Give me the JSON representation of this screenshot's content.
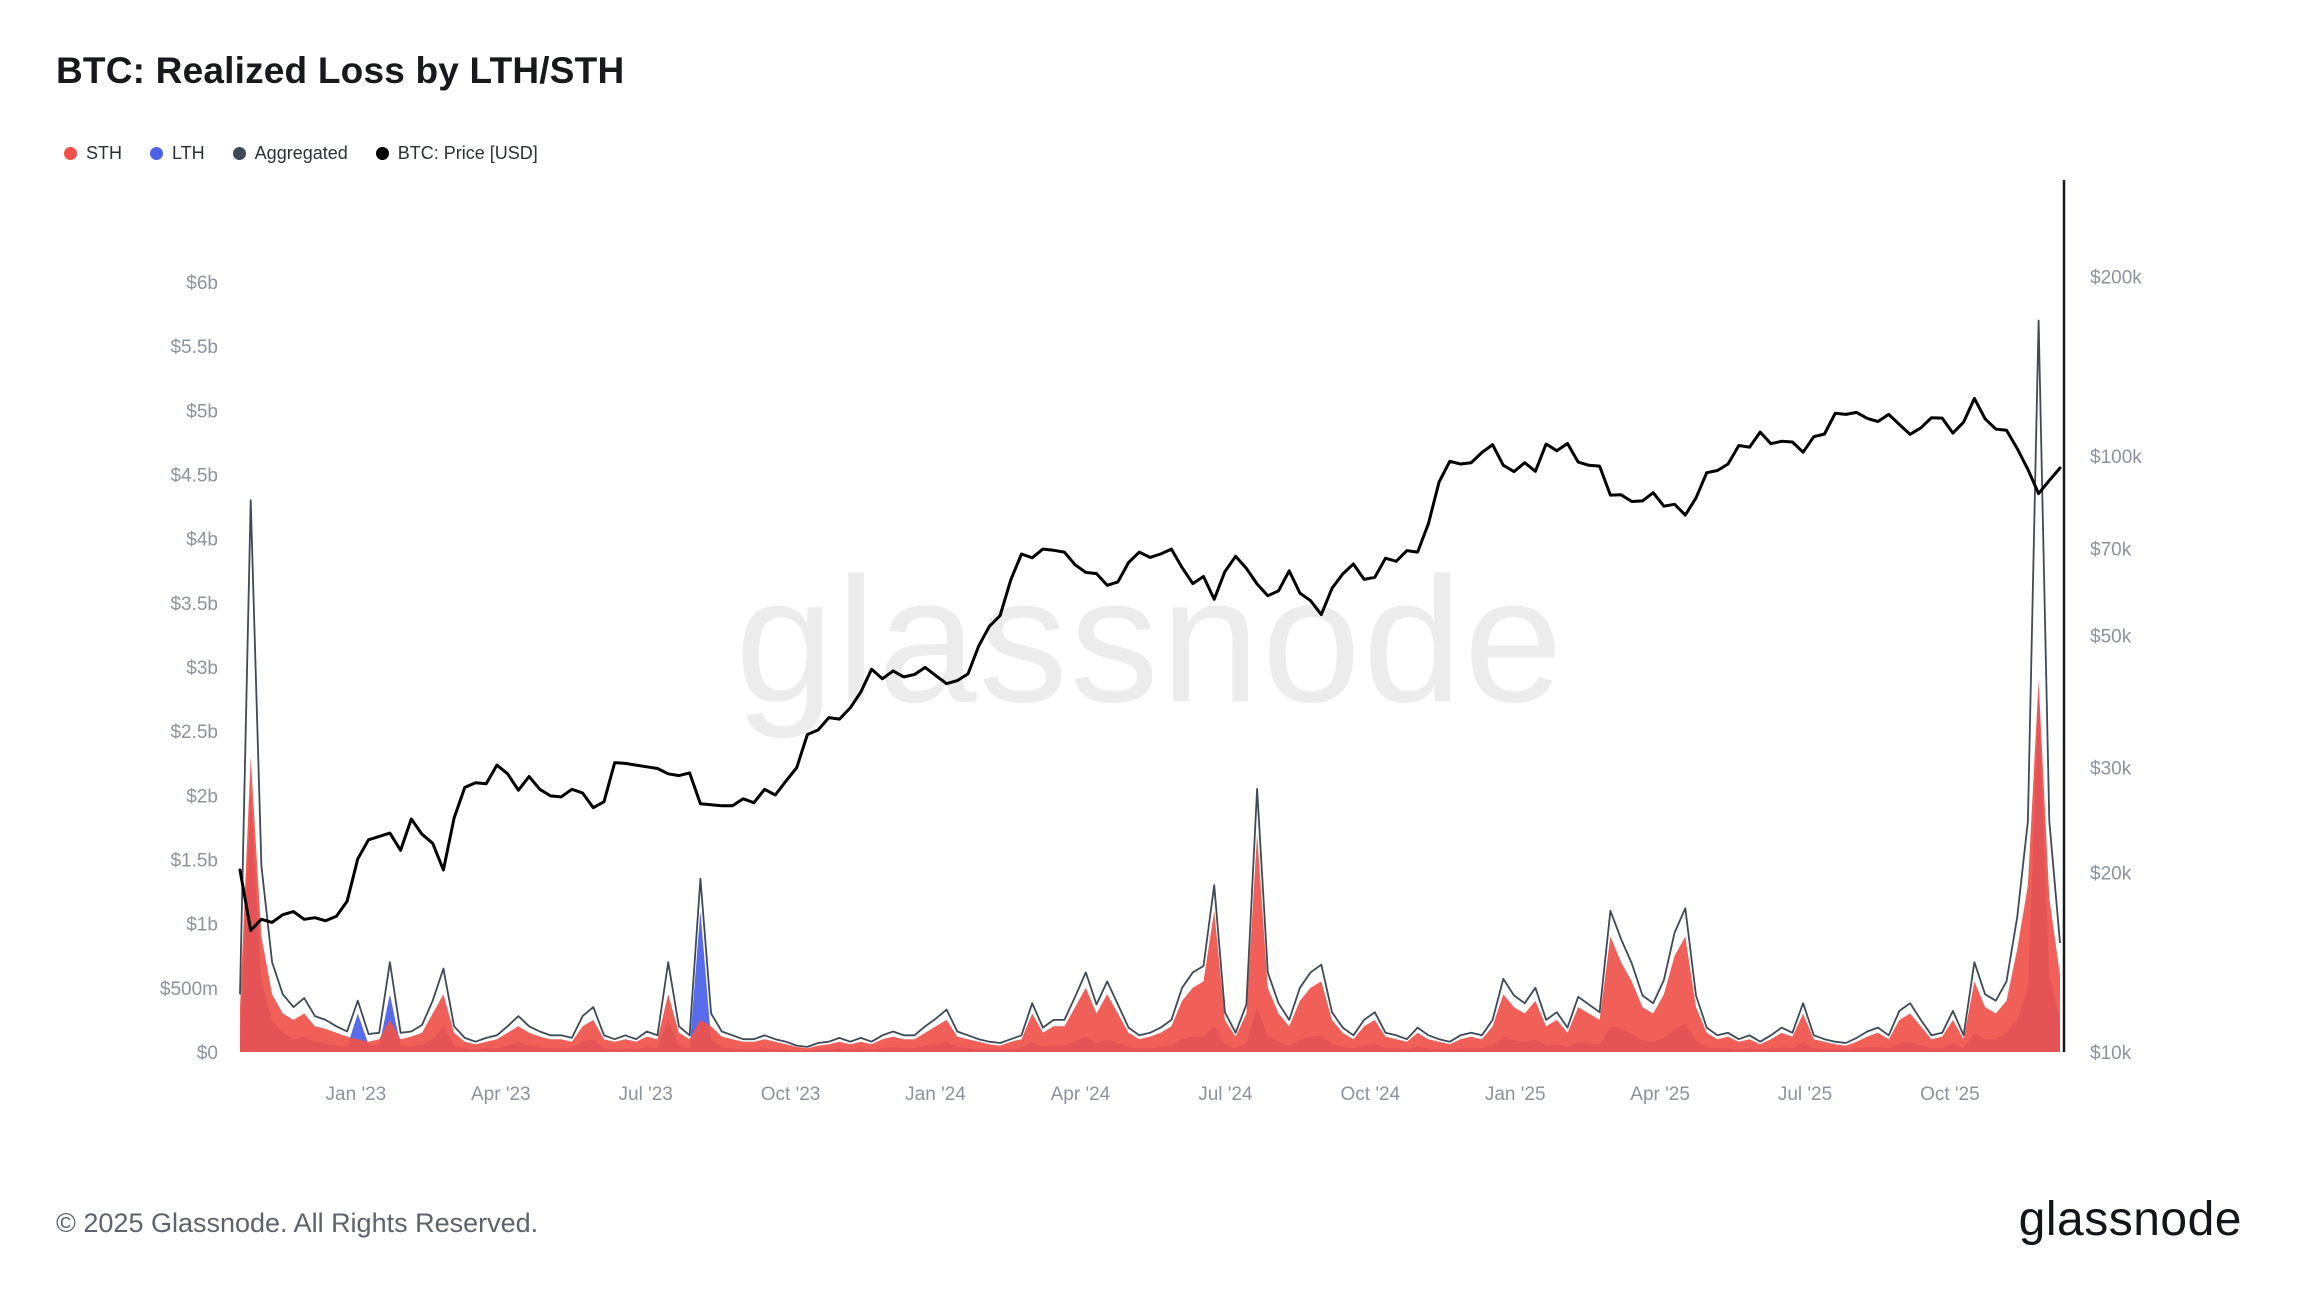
{
  "title": "BTC: Realized Loss by LTH/STH",
  "watermark": "glassnode",
  "legend": {
    "items": [
      {
        "label": "STH",
        "color": "#f0524a"
      },
      {
        "label": "LTH",
        "color": "#4f63ea"
      },
      {
        "label": "Aggregated",
        "color": "#3e4a57"
      },
      {
        "label": "BTC: Price [USD]",
        "color": "#000000"
      }
    ]
  },
  "footer": {
    "copyright": "© 2025 Glassnode. All Rights Reserved.",
    "logo_text": "glassnode"
  },
  "chart_data": {
    "type": "area",
    "title": "BTC: Realized Loss by LTH/STH",
    "x_axis": {
      "range_decimal_years": [
        2022.8,
        2025.94
      ],
      "tick_values": [
        2023.0,
        2023.25,
        2023.5,
        2023.75,
        2024.0,
        2024.25,
        2024.5,
        2024.75,
        2025.0,
        2025.25,
        2025.5,
        2025.75
      ],
      "tick_labels": [
        "Jan '23",
        "Apr '23",
        "Jul '23",
        "Oct '23",
        "Jan '24",
        "Apr '24",
        "Jul '24",
        "Oct '24",
        "Jan '25",
        "Apr '25",
        "Jul '25",
        "Oct '25"
      ]
    },
    "left_axis": {
      "scale": "linear",
      "range_billions_usd": [
        0,
        6
      ],
      "tick_values": [
        0,
        0.5,
        1,
        1.5,
        2,
        2.5,
        3,
        3.5,
        4,
        4.5,
        5,
        5.5,
        6
      ],
      "tick_labels": [
        "$0",
        "$500m",
        "$1b",
        "$1.5b",
        "$2b",
        "$2.5b",
        "$3b",
        "$3.5b",
        "$4b",
        "$4.5b",
        "$5b",
        "$5.5b",
        "$6b"
      ]
    },
    "right_axis": {
      "scale": "log",
      "range_thousands_usd": [
        10,
        215
      ],
      "tick_values": [
        10,
        20,
        30,
        50,
        70,
        100,
        200
      ],
      "tick_labels": [
        "$10k",
        "$20k",
        "$30k",
        "$50k",
        "$70k",
        "$100k",
        "$200k"
      ]
    },
    "grid": "off",
    "legend_position": "top-left",
    "points_evenly_spaced_over_x_range": true,
    "series": [
      {
        "name": "STH",
        "type": "area",
        "axis": "left",
        "color": "#f0524a",
        "values_billions_usd": [
          0.35,
          2.3,
          0.9,
          0.45,
          0.3,
          0.25,
          0.3,
          0.2,
          0.18,
          0.15,
          0.12,
          0.1,
          0.08,
          0.1,
          0.25,
          0.1,
          0.12,
          0.15,
          0.3,
          0.45,
          0.15,
          0.08,
          0.06,
          0.08,
          0.1,
          0.15,
          0.2,
          0.15,
          0.12,
          0.1,
          0.1,
          0.08,
          0.2,
          0.25,
          0.1,
          0.08,
          0.1,
          0.08,
          0.12,
          0.1,
          0.45,
          0.15,
          0.1,
          0.25,
          0.2,
          0.12,
          0.1,
          0.08,
          0.08,
          0.1,
          0.08,
          0.06,
          0.04,
          0.03,
          0.05,
          0.06,
          0.08,
          0.06,
          0.08,
          0.06,
          0.1,
          0.12,
          0.1,
          0.1,
          0.15,
          0.2,
          0.25,
          0.12,
          0.1,
          0.08,
          0.06,
          0.05,
          0.08,
          0.1,
          0.3,
          0.15,
          0.2,
          0.2,
          0.35,
          0.5,
          0.3,
          0.45,
          0.3,
          0.15,
          0.1,
          0.12,
          0.15,
          0.2,
          0.4,
          0.5,
          0.55,
          1.1,
          0.25,
          0.12,
          0.3,
          1.7,
          0.5,
          0.3,
          0.2,
          0.4,
          0.5,
          0.55,
          0.25,
          0.15,
          0.1,
          0.2,
          0.25,
          0.12,
          0.1,
          0.08,
          0.15,
          0.1,
          0.08,
          0.06,
          0.1,
          0.12,
          0.1,
          0.2,
          0.45,
          0.35,
          0.3,
          0.4,
          0.2,
          0.25,
          0.15,
          0.35,
          0.3,
          0.25,
          0.9,
          0.7,
          0.55,
          0.35,
          0.3,
          0.45,
          0.75,
          0.9,
          0.35,
          0.15,
          0.1,
          0.12,
          0.08,
          0.1,
          0.06,
          0.1,
          0.15,
          0.12,
          0.3,
          0.1,
          0.08,
          0.06,
          0.05,
          0.08,
          0.12,
          0.15,
          0.1,
          0.25,
          0.3,
          0.2,
          0.1,
          0.12,
          0.25,
          0.1,
          0.55,
          0.35,
          0.3,
          0.4,
          0.8,
          1.3,
          2.9,
          1.2,
          0.6
        ]
      },
      {
        "name": "LTH",
        "type": "area",
        "axis": "left",
        "color": "#4f63ea",
        "values_billions_usd": [
          0.1,
          2.0,
          0.55,
          0.25,
          0.15,
          0.1,
          0.12,
          0.08,
          0.07,
          0.05,
          0.04,
          0.3,
          0.06,
          0.05,
          0.45,
          0.05,
          0.04,
          0.06,
          0.1,
          0.2,
          0.05,
          0.03,
          0.02,
          0.03,
          0.03,
          0.05,
          0.08,
          0.05,
          0.04,
          0.03,
          0.03,
          0.03,
          0.08,
          0.1,
          0.03,
          0.02,
          0.03,
          0.02,
          0.04,
          0.03,
          0.25,
          0.05,
          0.03,
          1.1,
          0.1,
          0.04,
          0.03,
          0.02,
          0.02,
          0.03,
          0.02,
          0.02,
          0.01,
          0.01,
          0.02,
          0.02,
          0.03,
          0.02,
          0.03,
          0.02,
          0.03,
          0.04,
          0.03,
          0.03,
          0.05,
          0.06,
          0.08,
          0.04,
          0.03,
          0.02,
          0.02,
          0.02,
          0.02,
          0.03,
          0.08,
          0.04,
          0.05,
          0.05,
          0.08,
          0.12,
          0.07,
          0.1,
          0.07,
          0.04,
          0.03,
          0.03,
          0.04,
          0.05,
          0.1,
          0.12,
          0.12,
          0.2,
          0.06,
          0.03,
          0.07,
          0.35,
          0.12,
          0.08,
          0.05,
          0.1,
          0.12,
          0.13,
          0.06,
          0.04,
          0.03,
          0.05,
          0.06,
          0.03,
          0.03,
          0.02,
          0.04,
          0.03,
          0.02,
          0.02,
          0.03,
          0.03,
          0.03,
          0.05,
          0.12,
          0.09,
          0.08,
          0.1,
          0.05,
          0.06,
          0.04,
          0.08,
          0.07,
          0.06,
          0.2,
          0.18,
          0.14,
          0.09,
          0.08,
          0.11,
          0.18,
          0.22,
          0.09,
          0.04,
          0.03,
          0.03,
          0.02,
          0.03,
          0.02,
          0.03,
          0.04,
          0.03,
          0.08,
          0.03,
          0.02,
          0.02,
          0.02,
          0.03,
          0.04,
          0.04,
          0.03,
          0.07,
          0.08,
          0.05,
          0.03,
          0.03,
          0.07,
          0.03,
          0.15,
          0.1,
          0.1,
          0.15,
          0.25,
          0.5,
          2.8,
          0.6,
          0.25
        ]
      },
      {
        "name": "Aggregated",
        "type": "line",
        "axis": "left",
        "color": "#3e4a57",
        "derived": "STH + LTH"
      },
      {
        "name": "BTC: Price [USD]",
        "type": "line",
        "axis": "right",
        "color": "#000000",
        "values_thousands_usd": [
          20.2,
          16.0,
          16.7,
          16.5,
          17.0,
          17.2,
          16.7,
          16.8,
          16.6,
          16.9,
          17.9,
          21.1,
          22.7,
          23.0,
          23.3,
          21.8,
          24.6,
          23.2,
          22.4,
          20.2,
          24.7,
          27.8,
          28.3,
          28.2,
          30.3,
          29.3,
          27.5,
          29.0,
          27.6,
          26.9,
          26.8,
          27.6,
          27.2,
          25.7,
          26.3,
          30.6,
          30.5,
          30.3,
          30.1,
          29.9,
          29.3,
          29.1,
          29.4,
          26.1,
          26.0,
          25.9,
          25.9,
          26.6,
          26.2,
          27.6,
          27.0,
          28.5,
          30.0,
          34.1,
          34.7,
          36.4,
          36.2,
          37.8,
          40.2,
          43.9,
          42.3,
          43.6,
          42.6,
          43.0,
          44.2,
          42.8,
          41.5,
          42.0,
          43.1,
          48.0,
          51.8,
          54.0,
          62.0,
          68.5,
          67.5,
          69.8,
          69.5,
          69.0,
          65.7,
          63.8,
          63.5,
          60.7,
          61.5,
          66.3,
          69.0,
          67.6,
          68.5,
          69.8,
          65.0,
          61.1,
          62.8,
          57.5,
          64.0,
          67.9,
          64.8,
          61.0,
          58.3,
          59.4,
          64.2,
          58.9,
          57.2,
          54.2,
          60.0,
          63.4,
          65.9,
          62.1,
          62.6,
          67.4,
          66.6,
          69.4,
          69.0,
          77.0,
          90.5,
          98.0,
          97.0,
          97.5,
          101.4,
          104.5,
          96.5,
          94.2,
          97.5,
          94.3,
          104.8,
          102.1,
          105.0,
          97.7,
          96.5,
          96.2,
          86.0,
          86.1,
          83.9,
          84.1,
          86.8,
          82.4,
          83.0,
          79.6,
          85.1,
          93.8,
          94.6,
          97.0,
          104.2,
          103.5,
          109.7,
          104.9,
          105.9,
          105.6,
          101.5,
          107.8,
          108.9,
          118.0,
          117.5,
          118.4,
          115.7,
          114.3,
          117.5,
          113.0,
          108.8,
          111.5,
          116.0,
          115.8,
          109.3,
          114.0,
          125.0,
          115.5,
          111.0,
          110.5,
          103.0,
          95.0,
          86.5,
          91.0,
          95.5
        ]
      }
    ]
  }
}
